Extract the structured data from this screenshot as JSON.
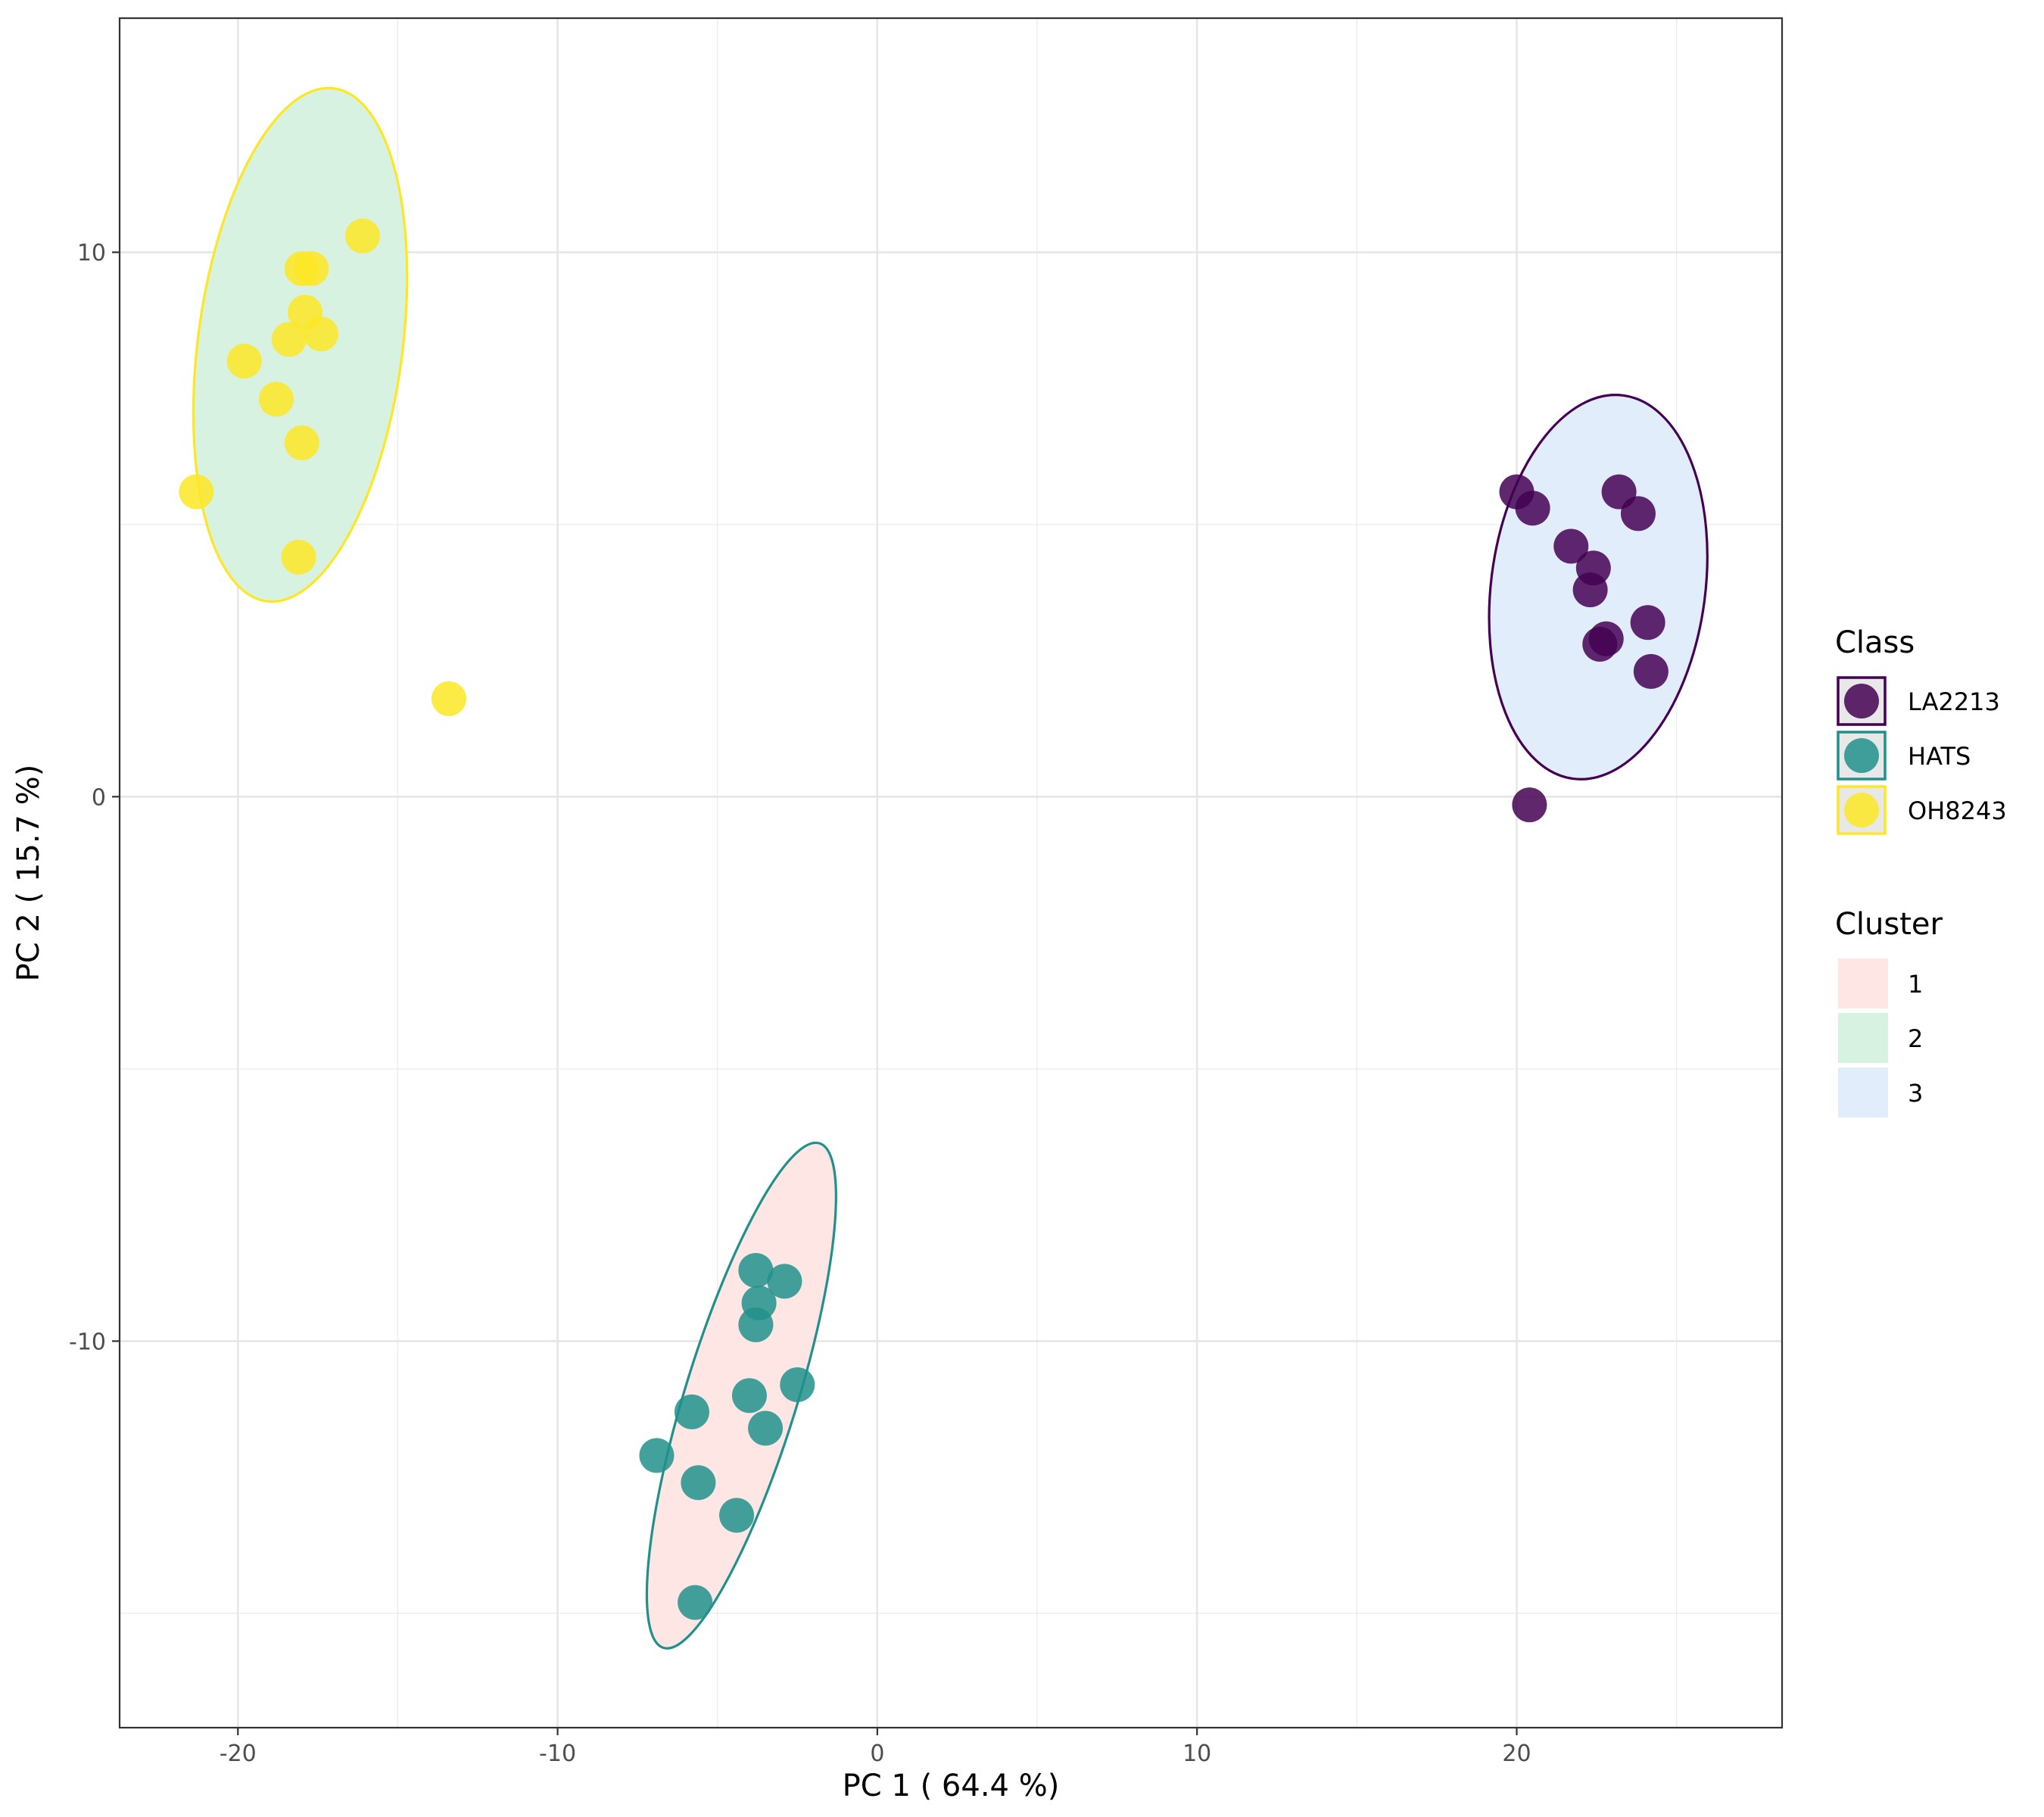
{
  "chart_data": {
    "type": "scatter",
    "title": "",
    "xlabel": "PC 1 ( 64.4 %)",
    "ylabel": "PC 2 ( 15.7 %)",
    "xlim": [
      -23.7,
      28.3
    ],
    "ylim": [
      -17.1,
      14.3
    ],
    "x_ticks": [
      -20,
      -10,
      0,
      10,
      20
    ],
    "x_tick_labels": [
      "-20",
      "-10",
      "0",
      "10",
      "20"
    ],
    "y_ticks": [
      -10,
      0,
      10
    ],
    "y_tick_labels": [
      "-10",
      "0",
      "10"
    ],
    "grid": true,
    "legend_position": "right",
    "class_legend": {
      "title": "Class",
      "items": [
        {
          "label": "LA2213",
          "color": "#440154"
        },
        {
          "label": "HATS",
          "color": "#21908C"
        },
        {
          "label": "OH8243",
          "color": "#FDE725"
        }
      ]
    },
    "cluster_legend": {
      "title": "Cluster",
      "items": [
        {
          "label": "1",
          "fill": "#FDE6E4"
        },
        {
          "label": "2",
          "fill": "#D8F2E1"
        },
        {
          "label": "3",
          "fill": "#E2EDFC"
        }
      ]
    },
    "series": [
      {
        "name": "LA2213",
        "color": "#440154",
        "points": [
          [
            20.0,
            5.6
          ],
          [
            20.5,
            5.3
          ],
          [
            21.7,
            4.6
          ],
          [
            22.4,
            4.2
          ],
          [
            22.3,
            3.8
          ],
          [
            23.2,
            5.6
          ],
          [
            23.8,
            5.2
          ],
          [
            24.1,
            3.2
          ],
          [
            24.2,
            2.3
          ],
          [
            22.8,
            2.9
          ],
          [
            22.6,
            2.8
          ],
          [
            20.4,
            -0.15
          ]
        ]
      },
      {
        "name": "HATS",
        "color": "#21908C",
        "points": [
          [
            -3.8,
            -8.7
          ],
          [
            -2.9,
            -8.9
          ],
          [
            -3.7,
            -9.3
          ],
          [
            -3.8,
            -9.7
          ],
          [
            -4.0,
            -11.0
          ],
          [
            -2.5,
            -10.8
          ],
          [
            -3.5,
            -11.6
          ],
          [
            -5.8,
            -11.3
          ],
          [
            -6.9,
            -12.1
          ],
          [
            -5.6,
            -12.6
          ],
          [
            -4.4,
            -13.2
          ],
          [
            -5.7,
            -14.8
          ]
        ]
      },
      {
        "name": "OH8243",
        "color": "#FDE725",
        "points": [
          [
            -16.1,
            10.3
          ],
          [
            -18.0,
            9.7
          ],
          [
            -17.7,
            9.7
          ],
          [
            -17.9,
            8.9
          ],
          [
            -17.4,
            8.5
          ],
          [
            -18.4,
            8.4
          ],
          [
            -19.8,
            8.0
          ],
          [
            -18.8,
            7.3
          ],
          [
            -18.0,
            6.5
          ],
          [
            -21.3,
            5.6
          ],
          [
            -18.1,
            4.4
          ],
          [
            -13.4,
            1.8
          ]
        ]
      }
    ],
    "ellipses": [
      {
        "cluster": "3",
        "class": "LA2213",
        "fill": "#E2EDFC",
        "stroke": "#440154",
        "cx": 22.55,
        "cy": 3.85,
        "rx": 3.35,
        "ry": 3.55,
        "tilt": 0.13
      },
      {
        "cluster": "1",
        "class": "HATS",
        "fill": "#FDE6E4",
        "stroke": "#21908C",
        "cx": -4.25,
        "cy": -11.0,
        "rx": 1.75,
        "ry": 4.85,
        "tilt": 0.3
      },
      {
        "cluster": "2",
        "class": "OH8243",
        "fill": "#D8F2E1",
        "stroke": "#FDE725",
        "cx": -18.05,
        "cy": 8.3,
        "rx": 3.2,
        "ry": 4.75,
        "tilt": 0.13
      }
    ]
  }
}
